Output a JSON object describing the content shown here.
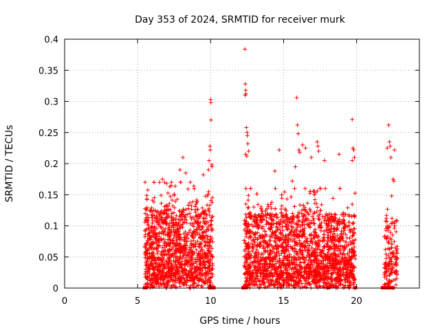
{
  "chart_data": {
    "type": "scatter",
    "title": "Day 353 of 2024, SRMTID for receiver murk",
    "xlabel": "GPS time / hours",
    "ylabel": "SRMTID / TECUs",
    "xlim": [
      0,
      24.3
    ],
    "ylim": [
      0,
      0.4
    ],
    "xticks": [
      0,
      5,
      10,
      15,
      20
    ],
    "xtick_labels": [
      "0",
      "5",
      "10",
      "15",
      "20"
    ],
    "yticks": [
      0,
      0.05,
      0.1,
      0.15,
      0.2,
      0.25,
      0.3,
      0.35,
      0.4
    ],
    "ytick_labels": [
      "0",
      "0.05",
      "0.1",
      "0.15",
      "0.2",
      "0.25",
      "0.3",
      "0.35",
      "0.4"
    ],
    "grid": true,
    "marker": "+",
    "color": "#ff0000",
    "series": [
      {
        "name": "SRMTID",
        "segments": [
          {
            "start": 5.5,
            "end": 10.15,
            "density": 2800,
            "ymax": 0.17
          },
          {
            "start": 12.3,
            "end": 19.9,
            "density": 3400,
            "ymax": 0.16
          },
          {
            "start": 21.9,
            "end": 22.8,
            "density": 1600,
            "ymax": 0.15
          }
        ],
        "points": [
          [
            12.35,
            0.384
          ],
          [
            12.38,
            0.328
          ],
          [
            12.4,
            0.318
          ],
          [
            12.42,
            0.312
          ],
          [
            12.37,
            0.31
          ],
          [
            12.45,
            0.258
          ],
          [
            12.5,
            0.25
          ],
          [
            12.52,
            0.245
          ],
          [
            12.55,
            0.232
          ],
          [
            12.6,
            0.22
          ],
          [
            12.4,
            0.215
          ],
          [
            12.48,
            0.212
          ],
          [
            10.0,
            0.303
          ],
          [
            10.02,
            0.298
          ],
          [
            10.03,
            0.27
          ],
          [
            9.95,
            0.228
          ],
          [
            9.98,
            0.222
          ],
          [
            10.08,
            0.198
          ],
          [
            10.1,
            0.195
          ],
          [
            9.9,
            0.205
          ],
          [
            9.85,
            0.19
          ],
          [
            8.1,
            0.21
          ],
          [
            7.9,
            0.19
          ],
          [
            8.3,
            0.185
          ],
          [
            9.5,
            0.182
          ],
          [
            6.5,
            0.17
          ],
          [
            6.7,
            0.175
          ],
          [
            7.0,
            0.168
          ],
          [
            15.9,
            0.306
          ],
          [
            15.95,
            0.262
          ],
          [
            16.0,
            0.248
          ],
          [
            16.3,
            0.23
          ],
          [
            16.5,
            0.225
          ],
          [
            17.3,
            0.235
          ],
          [
            17.35,
            0.228
          ],
          [
            17.4,
            0.22
          ],
          [
            16.05,
            0.222
          ],
          [
            16.1,
            0.218
          ],
          [
            14.7,
            0.222
          ],
          [
            14.4,
            0.188
          ],
          [
            15.8,
            0.195
          ],
          [
            15.6,
            0.172
          ],
          [
            17.8,
            0.205
          ],
          [
            16.9,
            0.21
          ],
          [
            18.8,
            0.215
          ],
          [
            19.7,
            0.271
          ],
          [
            19.75,
            0.225
          ],
          [
            19.8,
            0.222
          ],
          [
            19.85,
            0.21
          ],
          [
            19.7,
            0.205
          ],
          [
            22.2,
            0.262
          ],
          [
            22.25,
            0.235
          ],
          [
            22.3,
            0.228
          ],
          [
            22.1,
            0.225
          ],
          [
            22.6,
            0.222
          ],
          [
            22.35,
            0.21
          ],
          [
            22.5,
            0.175
          ],
          [
            22.55,
            0.172
          ],
          [
            22.4,
            0.148
          ]
        ],
        "baseline_markers": [
          [
            5.5,
            0
          ],
          [
            5.55,
            0
          ],
          [
            9.95,
            0
          ],
          [
            10.1,
            0
          ],
          [
            10.2,
            0
          ],
          [
            12.25,
            0
          ],
          [
            12.3,
            0
          ],
          [
            12.35,
            0
          ],
          [
            12.4,
            0
          ],
          [
            18.05,
            0
          ],
          [
            19.9,
            0
          ],
          [
            21.8,
            0
          ],
          [
            21.85,
            0
          ],
          [
            21.9,
            0
          ],
          [
            21.95,
            0
          ],
          [
            22.0,
            0
          ],
          [
            22.05,
            0
          ],
          [
            22.1,
            0
          ],
          [
            22.15,
            0
          ],
          [
            22.4,
            0
          ],
          [
            22.45,
            0
          ]
        ]
      }
    ]
  }
}
